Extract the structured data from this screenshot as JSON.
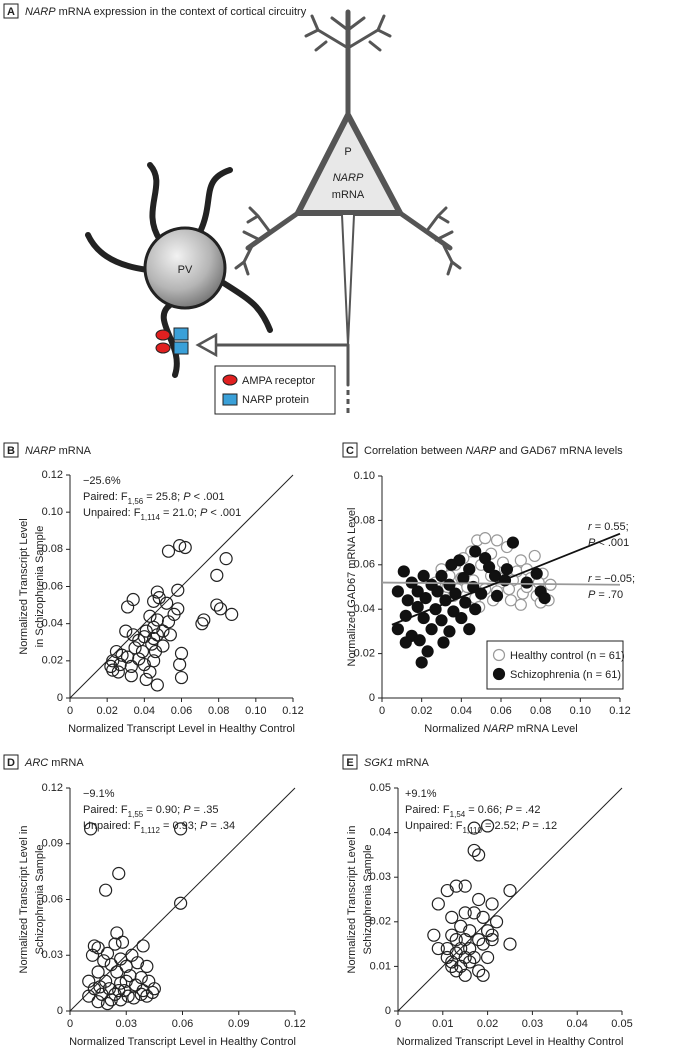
{
  "diagram": {
    "panel": "A",
    "title": [
      {
        "italic": "NARP"
      },
      {
        "text": " mRNA expression in the context of cortical circuitry"
      }
    ],
    "cell_labels": {
      "pyramidal": "P",
      "mrna_italic": "NARP",
      "mrna": "mRNA",
      "pv": "PV"
    },
    "legend": [
      "AMPA receptor",
      "NARP protein"
    ]
  },
  "chart_data": [
    {
      "type": "scatter",
      "panel": "B",
      "title": [
        {
          "italic": "NARP"
        },
        {
          "text": " mRNA"
        }
      ],
      "xlabel": [
        {
          "text": "Normalized Transcript Level in Healthy Control"
        }
      ],
      "ylabel": [
        [
          {
            "text": "Normalized Transcript Level"
          }
        ],
        [
          {
            "text": "in Schizophrenia Sample"
          }
        ]
      ],
      "annotations": [
        {
          "lines": [
            [
              {
                "text": "−25.6%"
              }
            ],
            [
              {
                "text": "Paired: F"
              },
              {
                "sub": "1,56"
              },
              {
                "text": " = 25.8; "
              },
              {
                "italic": "P"
              },
              {
                "text": " < .001"
              }
            ],
            [
              {
                "text": "Unpaired: F"
              },
              {
                "sub": "1,114"
              },
              {
                "text": " = 21.0; "
              },
              {
                "italic": "P"
              },
              {
                "text": " < .001"
              }
            ]
          ]
        }
      ],
      "xlim": [
        0,
        0.12
      ],
      "ylim": [
        0,
        0.12
      ],
      "xticks": [
        0,
        0.02,
        0.04,
        0.06,
        0.08,
        {
          "value": 0.1,
          "label": "0.10"
        },
        0.12
      ],
      "yticks": [
        0,
        0.02,
        0.04,
        0.06,
        0.08,
        {
          "value": 0.1,
          "label": "0.10"
        },
        0.12
      ],
      "identity_line": true,
      "series": [
        {
          "color": "#222222",
          "fill": "none",
          "x": [
            0.053,
            0.059,
            0.062,
            0.084,
            0.079,
            0.058,
            0.047,
            0.048,
            0.045,
            0.034,
            0.031,
            0.052,
            0.058,
            0.079,
            0.081,
            0.087,
            0.072,
            0.071,
            0.056,
            0.043,
            0.047,
            0.053,
            0.045,
            0.041,
            0.05,
            0.054,
            0.047,
            0.045,
            0.04,
            0.03,
            0.034,
            0.037,
            0.044,
            0.05,
            0.046,
            0.039,
            0.035,
            0.031,
            0.028,
            0.025,
            0.023,
            0.022,
            0.027,
            0.033,
            0.037,
            0.04,
            0.045,
            0.043,
            0.041,
            0.047,
            0.033,
            0.026,
            0.023,
            0.06,
            0.059,
            0.06
          ],
          "values": [
            0.079,
            0.082,
            0.081,
            0.075,
            0.066,
            0.058,
            0.057,
            0.054,
            0.052,
            0.053,
            0.049,
            0.051,
            0.048,
            0.05,
            0.048,
            0.045,
            0.042,
            0.04,
            0.045,
            0.044,
            0.042,
            0.041,
            0.038,
            0.036,
            0.036,
            0.034,
            0.034,
            0.032,
            0.033,
            0.036,
            0.034,
            0.031,
            0.029,
            0.028,
            0.025,
            0.025,
            0.027,
            0.022,
            0.023,
            0.025,
            0.02,
            0.017,
            0.018,
            0.017,
            0.021,
            0.018,
            0.02,
            0.014,
            0.01,
            0.007,
            0.012,
            0.014,
            0.015,
            0.024,
            0.018,
            0.011
          ]
        }
      ]
    },
    {
      "type": "scatter",
      "panel": "C",
      "title": [
        {
          "text": "Correlation between "
        },
        {
          "italic": "NARP"
        },
        {
          "text": " and GAD67 mRNA levels"
        }
      ],
      "xlabel": [
        {
          "text": "Normalized "
        },
        {
          "italic": "NARP"
        },
        {
          "text": " mRNA Level"
        }
      ],
      "ylabel": [
        [
          {
            "text": "Normalized GAD67 mRNA Level"
          }
        ]
      ],
      "annotations": [
        {
          "lines": [
            [
              {
                "italic": "r"
              },
              {
                "text": " = 0.55;"
              }
            ],
            [
              {
                "italic": "P"
              },
              {
                "text": " < .001"
              }
            ]
          ]
        },
        {
          "lines": [
            [
              {
                "italic": "r"
              },
              {
                "text": " = −0.05;"
              }
            ],
            [
              {
                "italic": "P"
              },
              {
                "text": " = .70"
              }
            ]
          ]
        }
      ],
      "xlim": [
        0,
        0.12
      ],
      "ylim": [
        0,
        0.1
      ],
      "xticks": [
        0,
        0.02,
        0.04,
        0.06,
        0.08,
        {
          "value": 0.1,
          "label": "0.10"
        },
        0.12
      ],
      "yticks": [
        0,
        0.02,
        0.04,
        0.06,
        0.08,
        {
          "value": 0.1,
          "label": "0.10"
        }
      ],
      "identity_line": false,
      "legend": "lower right",
      "series": [
        {
          "name": "Healthy control (n = 61)",
          "color": "#999999",
          "fill": "#ffffff",
          "x": [
            0.048,
            0.052,
            0.058,
            0.063,
            0.045,
            0.041,
            0.055,
            0.037,
            0.07,
            0.077,
            0.03,
            0.044,
            0.05,
            0.062,
            0.068,
            0.073,
            0.081,
            0.034,
            0.04,
            0.046,
            0.055,
            0.06,
            0.066,
            0.075,
            0.079,
            0.085,
            0.027,
            0.033,
            0.038,
            0.043,
            0.052,
            0.058,
            0.064,
            0.071,
            0.078,
            0.084,
            0.08,
            0.036,
            0.047,
            0.056,
            0.065,
            0.07,
            0.049,
            0.073,
            0.061
          ],
          "values": [
            0.071,
            0.072,
            0.071,
            0.068,
            0.066,
            0.063,
            0.065,
            0.06,
            0.062,
            0.064,
            0.058,
            0.058,
            0.06,
            0.058,
            0.057,
            0.058,
            0.056,
            0.055,
            0.054,
            0.053,
            0.055,
            0.052,
            0.053,
            0.054,
            0.052,
            0.051,
            0.052,
            0.05,
            0.049,
            0.05,
            0.049,
            0.048,
            0.049,
            0.047,
            0.046,
            0.044,
            0.043,
            0.046,
            0.045,
            0.044,
            0.044,
            0.042,
            0.041,
            0.05,
            0.061
          ],
          "fit": {
            "x": [
              0,
              0.12
            ],
            "y": [
              0.052,
              0.051
            ]
          }
        },
        {
          "name": "Schizophrenia (n = 61)",
          "color": "#111111",
          "fill": "#111111",
          "x": [
            0.066,
            0.047,
            0.052,
            0.039,
            0.035,
            0.044,
            0.054,
            0.063,
            0.011,
            0.021,
            0.03,
            0.041,
            0.057,
            0.078,
            0.015,
            0.025,
            0.034,
            0.046,
            0.062,
            0.073,
            0.008,
            0.018,
            0.028,
            0.037,
            0.05,
            0.013,
            0.022,
            0.032,
            0.042,
            0.058,
            0.08,
            0.018,
            0.027,
            0.036,
            0.047,
            0.082,
            0.012,
            0.021,
            0.03,
            0.04,
            0.025,
            0.034,
            0.044,
            0.008,
            0.015,
            0.019,
            0.012,
            0.031,
            0.023,
            0.02
          ],
          "values": [
            0.07,
            0.066,
            0.063,
            0.062,
            0.06,
            0.058,
            0.059,
            0.058,
            0.057,
            0.055,
            0.055,
            0.054,
            0.055,
            0.056,
            0.052,
            0.051,
            0.051,
            0.05,
            0.053,
            0.052,
            0.048,
            0.048,
            0.048,
            0.047,
            0.047,
            0.044,
            0.045,
            0.044,
            0.043,
            0.046,
            0.048,
            0.041,
            0.04,
            0.039,
            0.04,
            0.045,
            0.037,
            0.036,
            0.035,
            0.036,
            0.031,
            0.03,
            0.031,
            0.031,
            0.028,
            0.026,
            0.025,
            0.025,
            0.021,
            0.016
          ],
          "fit": {
            "x": [
              0.005,
              0.12
            ],
            "y": [
              0.033,
              0.074
            ]
          }
        }
      ]
    },
    {
      "type": "scatter",
      "panel": "D",
      "title": [
        {
          "italic": "ARC"
        },
        {
          "text": " mRNA"
        }
      ],
      "xlabel": [
        {
          "text": "Normalized Transcript Level in Healthy Control"
        }
      ],
      "ylabel": [
        [
          {
            "text": "Normalized Transcript Level in"
          }
        ],
        [
          {
            "text": "Schizophrenia Sample"
          }
        ]
      ],
      "annotations": [
        {
          "lines": [
            [
              {
                "text": "−9.1%"
              }
            ],
            [
              {
                "text": "Paired: F"
              },
              {
                "sub": "1,55"
              },
              {
                "text": " = 0.90; "
              },
              {
                "italic": "P"
              },
              {
                "text": " = .35"
              }
            ],
            [
              {
                "text": "Unpaired: F"
              },
              {
                "sub": "1,112"
              },
              {
                "text": " = 0.93; "
              },
              {
                "italic": "P"
              },
              {
                "text": " = .34"
              }
            ]
          ]
        }
      ],
      "xlim": [
        0,
        0.12
      ],
      "ylim": [
        0,
        0.12
      ],
      "xticks": [
        0,
        0.03,
        0.06,
        0.09,
        0.12
      ],
      "yticks": [
        0,
        0.03,
        0.06,
        0.09,
        0.12
      ],
      "identity_line": true,
      "series": [
        {
          "color": "#222222",
          "fill": "none",
          "x": [
            0.011,
            0.059,
            0.026,
            0.019,
            0.059,
            0.025,
            0.013,
            0.015,
            0.024,
            0.028,
            0.039,
            0.012,
            0.02,
            0.027,
            0.033,
            0.018,
            0.022,
            0.03,
            0.036,
            0.041,
            0.015,
            0.025,
            0.032,
            0.038,
            0.01,
            0.019,
            0.027,
            0.035,
            0.042,
            0.013,
            0.021,
            0.029,
            0.039,
            0.045,
            0.017,
            0.024,
            0.031,
            0.041,
            0.01,
            0.022,
            0.027,
            0.034,
            0.015,
            0.02,
            0.038,
            0.026,
            0.044,
            0.016,
            0.03
          ],
          "values": [
            0.098,
            0.098,
            0.074,
            0.065,
            0.058,
            0.042,
            0.035,
            0.034,
            0.036,
            0.037,
            0.035,
            0.03,
            0.031,
            0.028,
            0.03,
            0.027,
            0.025,
            0.024,
            0.026,
            0.024,
            0.021,
            0.021,
            0.019,
            0.018,
            0.016,
            0.016,
            0.015,
            0.014,
            0.016,
            0.012,
            0.012,
            0.011,
            0.011,
            0.012,
            0.009,
            0.009,
            0.008,
            0.008,
            0.008,
            0.006,
            0.006,
            0.007,
            0.005,
            0.004,
            0.009,
            0.011,
            0.01,
            0.013,
            0.016
          ]
        }
      ]
    },
    {
      "type": "scatter",
      "panel": "E",
      "title": [
        {
          "italic": "SGK1"
        },
        {
          "text": " mRNA"
        }
      ],
      "xlabel": [
        {
          "text": "Normalized Transcript Level in Healthy Control"
        }
      ],
      "ylabel": [
        [
          {
            "text": "Normalized Transcript Level in"
          }
        ],
        [
          {
            "text": "Schizophrenia Sample"
          }
        ]
      ],
      "annotations": [
        {
          "lines": [
            [
              {
                "text": "+9.1%"
              }
            ],
            [
              {
                "text": "Paired: F"
              },
              {
                "sub": "1,54"
              },
              {
                "text": " = 0.66; "
              },
              {
                "italic": "P"
              },
              {
                "text": " = .42"
              }
            ],
            [
              {
                "text": "Unpaired: F"
              },
              {
                "sub": "1,110"
              },
              {
                "text": " = 2.52; "
              },
              {
                "italic": "P"
              },
              {
                "text": " = .12"
              }
            ]
          ]
        }
      ],
      "xlim": [
        0,
        0.05
      ],
      "ylim": [
        0,
        0.05
      ],
      "xticks": [
        0,
        0.01,
        0.02,
        0.03,
        0.04,
        0.05
      ],
      "yticks": [
        0,
        0.01,
        0.02,
        0.03,
        0.04,
        0.05
      ],
      "identity_line": true,
      "series": [
        {
          "color": "#222222",
          "fill": "none",
          "x": [
            0.017,
            0.02,
            0.017,
            0.018,
            0.013,
            0.015,
            0.025,
            0.011,
            0.018,
            0.021,
            0.009,
            0.012,
            0.015,
            0.017,
            0.019,
            0.022,
            0.014,
            0.016,
            0.02,
            0.008,
            0.012,
            0.013,
            0.015,
            0.018,
            0.021,
            0.011,
            0.014,
            0.016,
            0.019,
            0.013,
            0.015,
            0.017,
            0.02,
            0.011,
            0.009,
            0.012,
            0.014,
            0.016,
            0.018,
            0.013,
            0.015,
            0.019,
            0.025,
            0.021,
            0.012
          ],
          "values": [
            0.041,
            0.0415,
            0.036,
            0.035,
            0.028,
            0.028,
            0.027,
            0.027,
            0.025,
            0.024,
            0.024,
            0.021,
            0.022,
            0.022,
            0.021,
            0.02,
            0.019,
            0.018,
            0.018,
            0.017,
            0.017,
            0.016,
            0.016,
            0.016,
            0.016,
            0.014,
            0.014,
            0.014,
            0.015,
            0.013,
            0.012,
            0.012,
            0.012,
            0.012,
            0.014,
            0.011,
            0.01,
            0.011,
            0.009,
            0.009,
            0.008,
            0.008,
            0.015,
            0.017,
            0.01
          ]
        }
      ]
    }
  ]
}
